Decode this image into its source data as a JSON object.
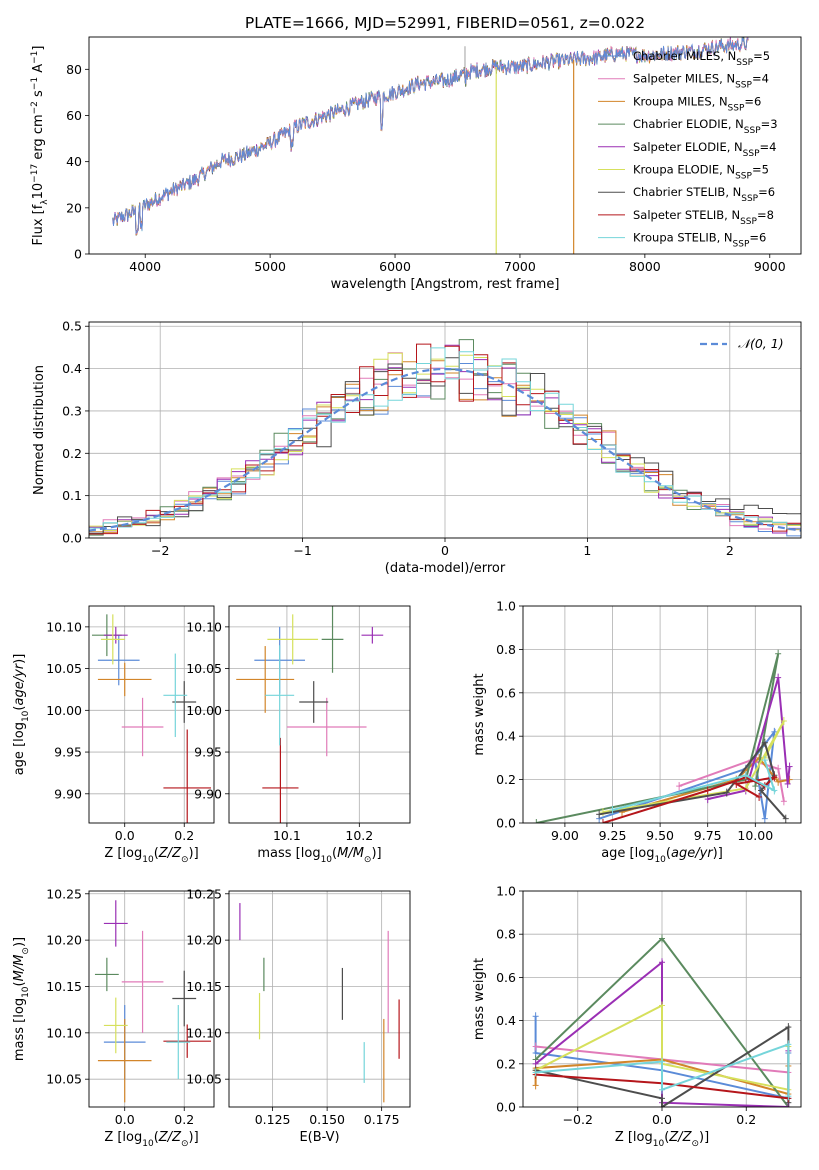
{
  "figure": {
    "title": "PLATE=1666, MJD=52991, FIBERID=0561, z=0.022"
  },
  "chart_data": [
    {
      "id": "spectrum",
      "type": "line",
      "xlabel": "wavelength [Angstrom, rest frame]",
      "ylabel": "Flux [f_λ 10^-17 erg cm^-2 s^-1 A^-1]",
      "xlim": [
        3550,
        9250
      ],
      "ylim": [
        0,
        94
      ],
      "xticks": [
        4000,
        5000,
        6000,
        7000,
        8000,
        9000
      ],
      "yticks": [
        0,
        20,
        40,
        60,
        80
      ],
      "grid": false,
      "legend_position": "top-right",
      "continuum": [
        [
          3740,
          14
        ],
        [
          3900,
          18
        ],
        [
          4000,
          21
        ],
        [
          4200,
          27
        ],
        [
          4400,
          32
        ],
        [
          4600,
          40
        ],
        [
          4800,
          43
        ],
        [
          5000,
          48
        ],
        [
          5200,
          55
        ],
        [
          5400,
          59
        ],
        [
          5600,
          63
        ],
        [
          5800,
          67
        ],
        [
          6000,
          70
        ],
        [
          6200,
          74
        ],
        [
          6400,
          75
        ],
        [
          6600,
          79
        ],
        [
          6800,
          81
        ],
        [
          7000,
          81
        ],
        [
          7200,
          83
        ],
        [
          7400,
          84
        ],
        [
          7600,
          85
        ],
        [
          7800,
          87
        ],
        [
          8000,
          86
        ],
        [
          8200,
          87
        ],
        [
          8400,
          88
        ],
        [
          8600,
          90
        ],
        [
          8800,
          91
        ]
      ],
      "spikes": [
        {
          "x": 6810,
          "y_low": 0
        },
        {
          "x": 7430,
          "y_low": 0
        },
        {
          "x": 6560,
          "y_high": 90
        }
      ],
      "series": [
        {
          "name": "Chabrier MILES, N_SSP=5",
          "label_main": "Chabrier MILES, N",
          "label_sub": "SSP",
          "label_tail": "=5",
          "color": "#5b8bd8"
        },
        {
          "name": "Salpeter MILES, N_SSP=4",
          "label_main": "Salpeter MILES, N",
          "label_sub": "SSP",
          "label_tail": "=4",
          "color": "#e17bb9"
        },
        {
          "name": "Kroupa MILES, N_SSP=6",
          "label_main": "Kroupa MILES, N",
          "label_sub": "SSP",
          "label_tail": "=6",
          "color": "#d2852a"
        },
        {
          "name": "Chabrier ELODIE, N_SSP=3",
          "label_main": "Chabrier ELODIE, N",
          "label_sub": "SSP",
          "label_tail": "=3",
          "color": "#5b8a5f"
        },
        {
          "name": "Salpeter ELODIE, N_SSP=4",
          "label_main": "Salpeter ELODIE, N",
          "label_sub": "SSP",
          "label_tail": "=4",
          "color": "#9a2fb4"
        },
        {
          "name": "Kroupa ELODIE, N_SSP=5",
          "label_main": "Kroupa ELODIE, N",
          "label_sub": "SSP",
          "label_tail": "=5",
          "color": "#d6e05c"
        },
        {
          "name": "Chabrier STELIB, N_SSP=6",
          "label_main": "Chabrier STELIB, N",
          "label_sub": "SSP",
          "label_tail": "=6",
          "color": "#4d4d4d"
        },
        {
          "name": "Salpeter STELIB, N_SSP=8",
          "label_main": "Salpeter STELIB, N",
          "label_sub": "SSP",
          "label_tail": "=8",
          "color": "#b5161b"
        },
        {
          "name": "Kroupa STELIB, N_SSP=6",
          "label_main": "Kroupa STELIB, N",
          "label_sub": "SSP",
          "label_tail": "=6",
          "color": "#75d5da"
        }
      ]
    },
    {
      "id": "residuals",
      "type": "histogram",
      "xlabel": "(data-model)/error",
      "ylabel": "Normed distribution",
      "xlim": [
        -2.5,
        2.5
      ],
      "ylim": [
        0,
        0.51
      ],
      "xticks": [
        -2,
        -1,
        0,
        1,
        2
      ],
      "yticks": [
        0.0,
        0.1,
        0.2,
        0.3,
        0.4,
        0.5
      ],
      "grid": true,
      "reference": {
        "name": "N(0,1)",
        "label": "𝒩(0, 1)",
        "mean": 0,
        "sigma": 1,
        "style": "dashed"
      },
      "bin_width": 0.1,
      "legend_position": "top-right"
    },
    {
      "id": "age-vs-z",
      "type": "scatter",
      "xlabel": "Z [log10(Z/Z⊙)]",
      "ylabel": "age [log10(age/yr)]",
      "xlim": [
        -0.12,
        0.3
      ],
      "ylim": [
        9.865,
        10.125
      ],
      "xticks": [
        0.0,
        0.2
      ],
      "yticks": [
        9.9,
        9.95,
        10.0,
        10.05,
        10.1
      ],
      "grid": true,
      "points": [
        {
          "x": -0.02,
          "y": 10.06,
          "xerr": 0.07,
          "yerr": 0.03,
          "color": "#5b8bd8"
        },
        {
          "x": 0.06,
          "y": 9.98,
          "xerr": 0.07,
          "yerr": 0.035,
          "color": "#e17bb9"
        },
        {
          "x": 0.0,
          "y": 10.037,
          "xerr": 0.09,
          "yerr": 0.02,
          "color": "#d2852a"
        },
        {
          "x": -0.06,
          "y": 10.09,
          "xerr": 0.05,
          "yerr": 0.025,
          "color": "#5b8a5f"
        },
        {
          "x": -0.03,
          "y": 10.09,
          "xerr": 0.04,
          "yerr": 0.01,
          "color": "#9a2fb4"
        },
        {
          "x": -0.04,
          "y": 10.085,
          "xerr": 0.04,
          "yerr": 0.03,
          "color": "#d6e05c"
        },
        {
          "x": 0.2,
          "y": 10.01,
          "xerr": 0.04,
          "yerr": 0.025,
          "color": "#4d4d4d"
        },
        {
          "x": 0.21,
          "y": 9.907,
          "xerr": 0.08,
          "yerr": 0.07,
          "color": "#b5161b"
        },
        {
          "x": 0.17,
          "y": 10.018,
          "xerr": 0.04,
          "yerr": 0.05,
          "color": "#75d5da"
        }
      ]
    },
    {
      "id": "age-vs-mass",
      "type": "scatter",
      "xlabel": "mass [log10(M/M⊙)]",
      "ylabel": "",
      "xlim": [
        10.02,
        10.27
      ],
      "ylim": [
        9.865,
        10.125
      ],
      "xticks": [
        10.1,
        10.2
      ],
      "yticks": [
        9.9,
        9.95,
        10.0,
        10.05,
        10.1
      ],
      "grid": true,
      "points": [
        {
          "x": 10.09,
          "y": 10.06,
          "xerr": 0.035,
          "yerr": 0.04,
          "color": "#5b8bd8"
        },
        {
          "x": 10.155,
          "y": 9.98,
          "xerr": 0.055,
          "yerr": 0.035,
          "color": "#e17bb9"
        },
        {
          "x": 10.07,
          "y": 10.037,
          "xerr": 0.04,
          "yerr": 0.04,
          "color": "#d2852a"
        },
        {
          "x": 10.163,
          "y": 10.085,
          "xerr": 0.015,
          "yerr": 0.04,
          "color": "#5b8a5f"
        },
        {
          "x": 10.218,
          "y": 10.09,
          "xerr": 0.015,
          "yerr": 0.01,
          "color": "#9a2fb4"
        },
        {
          "x": 10.108,
          "y": 10.085,
          "xerr": 0.035,
          "yerr": 0.03,
          "color": "#d6e05c"
        },
        {
          "x": 10.137,
          "y": 10.01,
          "xerr": 0.02,
          "yerr": 0.025,
          "color": "#4d4d4d"
        },
        {
          "x": 10.091,
          "y": 9.907,
          "xerr": 0.025,
          "yerr": 0.06,
          "color": "#b5161b"
        },
        {
          "x": 10.09,
          "y": 10.018,
          "xerr": 0.02,
          "yerr": 0.06,
          "color": "#75d5da"
        }
      ]
    },
    {
      "id": "weight-vs-age",
      "type": "line",
      "xlabel": "age [log10(age/yr)]",
      "ylabel": "mass weight",
      "xlim": [
        8.78,
        10.24
      ],
      "ylim": [
        0,
        1
      ],
      "xticks": [
        9.0,
        9.25,
        9.5,
        9.75,
        10.0
      ],
      "yticks": [
        0.0,
        0.2,
        0.4,
        0.6,
        0.8,
        1.0
      ],
      "grid": true,
      "series": [
        {
          "color": "#5b8bd8",
          "points": [
            [
              9.18,
              0.02
            ],
            [
              9.95,
              0.25
            ],
            [
              10.1,
              0.42
            ],
            [
              10.05,
              0.02
            ],
            [
              10.0,
              0.28
            ]
          ]
        },
        {
          "color": "#e17bb9",
          "points": [
            [
              9.6,
              0.17
            ],
            [
              9.98,
              0.29
            ],
            [
              10.12,
              0.25
            ],
            [
              10.15,
              0.1
            ]
          ]
        },
        {
          "color": "#d2852a",
          "points": [
            [
              9.3,
              0.05
            ],
            [
              9.9,
              0.2
            ],
            [
              10.02,
              0.3
            ],
            [
              10.12,
              0.19
            ],
            [
              10.18,
              0.2
            ]
          ]
        },
        {
          "color": "#5b8a5f",
          "points": [
            [
              8.85,
              0.0
            ],
            [
              9.95,
              0.2
            ],
            [
              10.12,
              0.78
            ],
            [
              10.0,
              0.17
            ]
          ]
        },
        {
          "color": "#9a2fb4",
          "points": [
            [
              9.75,
              0.11
            ],
            [
              9.95,
              0.15
            ],
            [
              10.12,
              0.67
            ],
            [
              10.17,
              0.18
            ],
            [
              10.18,
              0.26
            ]
          ]
        },
        {
          "color": "#d6e05c",
          "points": [
            [
              9.2,
              0.05
            ],
            [
              9.95,
              0.16
            ],
            [
              10.15,
              0.47
            ],
            [
              10.05,
              0.3
            ]
          ]
        },
        {
          "color": "#4d4d4d",
          "points": [
            [
              9.18,
              0.04
            ],
            [
              9.85,
              0.14
            ],
            [
              10.05,
              0.37
            ],
            [
              10.1,
              0.22
            ],
            [
              10.03,
              0.15
            ],
            [
              10.16,
              0.02
            ]
          ]
        },
        {
          "color": "#b5161b",
          "points": [
            [
              9.2,
              0.0
            ],
            [
              9.75,
              0.15
            ],
            [
              9.95,
              0.21
            ],
            [
              10.05,
              0.17
            ],
            [
              10.1,
              0.21
            ],
            [
              9.9,
              0.18
            ],
            [
              10.02,
              0.12
            ]
          ]
        },
        {
          "color": "#75d5da",
          "points": [
            [
              9.25,
              0.06
            ],
            [
              9.95,
              0.22
            ],
            [
              10.1,
              0.15
            ],
            [
              10.05,
              0.29
            ]
          ]
        }
      ]
    },
    {
      "id": "mass-vs-z",
      "type": "scatter",
      "xlabel": "Z [log10(Z/Z⊙)]",
      "ylabel": "mass [log10(M/M⊙)]",
      "xlim": [
        -0.12,
        0.3
      ],
      "ylim": [
        10.02,
        10.253
      ],
      "xticks": [
        0.0,
        0.2
      ],
      "yticks": [
        10.05,
        10.1,
        10.15,
        10.2,
        10.25
      ],
      "grid": true,
      "points": [
        {
          "x": 0.0,
          "y": 10.09,
          "xerr": 0.07,
          "yerr": 0.04,
          "color": "#5b8bd8"
        },
        {
          "x": 0.06,
          "y": 10.155,
          "xerr": 0.07,
          "yerr": 0.055,
          "color": "#e17bb9"
        },
        {
          "x": 0.0,
          "y": 10.07,
          "xerr": 0.09,
          "yerr": 0.045,
          "color": "#d2852a"
        },
        {
          "x": -0.06,
          "y": 10.163,
          "xerr": 0.04,
          "yerr": 0.018,
          "color": "#5b8a5f"
        },
        {
          "x": -0.03,
          "y": 10.218,
          "xerr": 0.04,
          "yerr": 0.025,
          "color": "#9a2fb4"
        },
        {
          "x": -0.03,
          "y": 10.108,
          "xerr": 0.04,
          "yerr": 0.03,
          "color": "#d6e05c"
        },
        {
          "x": 0.2,
          "y": 10.137,
          "xerr": 0.04,
          "yerr": 0.03,
          "color": "#4d4d4d"
        },
        {
          "x": 0.21,
          "y": 10.091,
          "xerr": 0.08,
          "yerr": 0.018,
          "color": "#b5161b"
        },
        {
          "x": 0.18,
          "y": 10.09,
          "xerr": 0.04,
          "yerr": 0.04,
          "color": "#75d5da"
        }
      ]
    },
    {
      "id": "mass-vs-ebv",
      "type": "errorbar",
      "xlabel": "E(B-V)",
      "ylabel": "",
      "xlim": [
        0.105,
        0.188
      ],
      "ylim": [
        10.02,
        10.253
      ],
      "xticks": [
        0.125,
        0.15,
        0.175
      ],
      "xtick_labels": [
        "0.125",
        "0.150",
        "0.175"
      ],
      "yticks": [
        10.05,
        10.1,
        10.15,
        10.2,
        10.25
      ],
      "grid": true,
      "points": [
        {
          "x": 0.178,
          "y": 10.155,
          "yerr": 0.055,
          "color": "#e17bb9"
        },
        {
          "x": 0.176,
          "y": 10.07,
          "yerr": 0.045,
          "color": "#d2852a"
        },
        {
          "x": 0.121,
          "y": 10.163,
          "yerr": 0.018,
          "color": "#5b8a5f"
        },
        {
          "x": 0.11,
          "y": 10.22,
          "yerr": 0.02,
          "color": "#9a2fb4"
        },
        {
          "x": 0.119,
          "y": 10.118,
          "yerr": 0.025,
          "color": "#d6e05c"
        },
        {
          "x": 0.157,
          "y": 10.142,
          "yerr": 0.028,
          "color": "#4d4d4d"
        },
        {
          "x": 0.183,
          "y": 10.104,
          "yerr": 0.032,
          "color": "#b5161b"
        },
        {
          "x": 0.167,
          "y": 10.068,
          "yerr": 0.022,
          "color": "#75d5da"
        }
      ]
    },
    {
      "id": "weight-vs-z",
      "type": "line",
      "xlabel": "Z [log10(Z/Z⊙)]",
      "ylabel": "mass weight",
      "xlim": [
        -0.33,
        0.33
      ],
      "ylim": [
        0,
        1
      ],
      "xticks": [
        -0.2,
        0.0,
        0.2
      ],
      "yticks": [
        0.0,
        0.2,
        0.4,
        0.6,
        0.8,
        1.0
      ],
      "grid": true,
      "series": [
        {
          "color": "#5b8bd8",
          "points": [
            [
              -0.3,
              0.42
            ],
            [
              -0.3,
              0.25
            ],
            [
              0.0,
              0.17
            ],
            [
              0.3,
              0.04
            ],
            [
              0.3,
              0.25
            ]
          ]
        },
        {
          "color": "#e17bb9",
          "points": [
            [
              -0.3,
              0.28
            ],
            [
              0.3,
              0.16
            ]
          ]
        },
        {
          "color": "#d2852a",
          "points": [
            [
              -0.3,
              0.1
            ],
            [
              -0.3,
              0.18
            ],
            [
              0.0,
              0.22
            ],
            [
              0.3,
              0.06
            ],
            [
              0.3,
              0.19
            ]
          ]
        },
        {
          "color": "#5b8a5f",
          "points": [
            [
              -0.3,
              0.22
            ],
            [
              0.0,
              0.78
            ],
            [
              0.3,
              0.0
            ]
          ]
        },
        {
          "color": "#9a2fb4",
          "points": [
            [
              -0.3,
              0.2
            ],
            [
              0.0,
              0.67
            ],
            [
              0.0,
              0.02
            ],
            [
              0.3,
              0.0
            ],
            [
              0.3,
              0.26
            ]
          ]
        },
        {
          "color": "#d6e05c",
          "points": [
            [
              -0.3,
              0.17
            ],
            [
              0.0,
              0.47
            ],
            [
              0.0,
              0.2
            ],
            [
              0.3,
              0.08
            ],
            [
              0.3,
              0.28
            ]
          ]
        },
        {
          "color": "#4d4d4d",
          "points": [
            [
              -0.3,
              0.17
            ],
            [
              0.0,
              0.04
            ],
            [
              0.0,
              0.0
            ],
            [
              0.3,
              0.37
            ],
            [
              0.3,
              0.02
            ]
          ]
        },
        {
          "color": "#b5161b",
          "points": [
            [
              -0.3,
              0.15
            ],
            [
              0.0,
              0.11
            ],
            [
              0.3,
              0.04
            ]
          ]
        },
        {
          "color": "#75d5da",
          "points": [
            [
              -0.3,
              0.16
            ],
            [
              0.0,
              0.21
            ],
            [
              0.0,
              0.08
            ],
            [
              0.3,
              0.29
            ],
            [
              0.3,
              0.05
            ]
          ]
        }
      ]
    }
  ]
}
